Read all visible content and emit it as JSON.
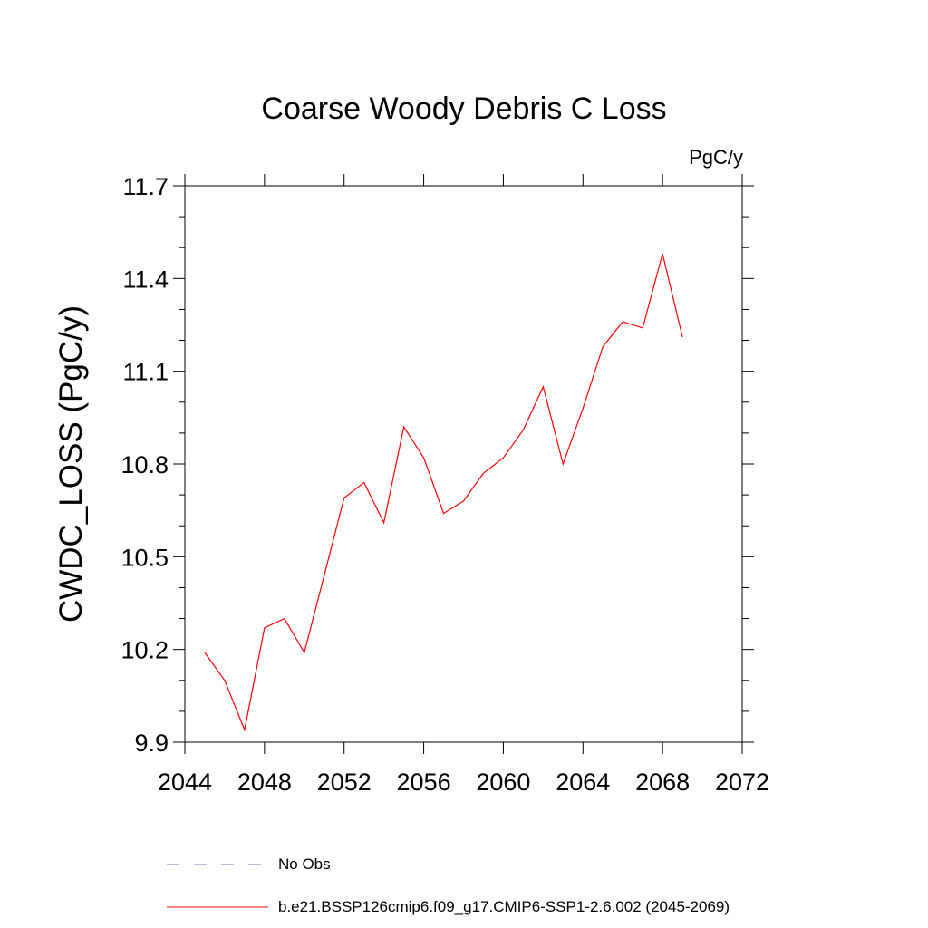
{
  "chart_data": {
    "type": "line",
    "title": "Coarse Woody Debris C Loss",
    "units": "PgC/y",
    "xlabel": "",
    "ylabel": "CWDC_LOSS  (PgC/y)",
    "xlim": [
      2044,
      2072
    ],
    "ylim": [
      9.9,
      11.7
    ],
    "x_ticks": [
      2044,
      2048,
      2052,
      2056,
      2060,
      2064,
      2068,
      2072
    ],
    "x_tick_labels": [
      "2044",
      "2048",
      "2052",
      "2056",
      "2060",
      "2064",
      "2068",
      "2072"
    ],
    "y_ticks": [
      9.9,
      10.2,
      10.5,
      10.8,
      11.1,
      11.4,
      11.7
    ],
    "y_tick_labels": [
      "9.9",
      "10.2",
      "10.5",
      "10.8",
      "11.1",
      "11.4",
      "11.7"
    ],
    "grid": false,
    "legend_position": "bottom",
    "series": [
      {
        "name": "b.e21.BSSP126cmip6.f09_g17.CMIP6-SSP1-2.6.002 (2045-2069)",
        "color": "#ff0000",
        "style": "solid",
        "x": [
          2045,
          2046,
          2047,
          2048,
          2049,
          2050,
          2051,
          2052,
          2053,
          2054,
          2055,
          2056,
          2057,
          2058,
          2059,
          2060,
          2061,
          2062,
          2063,
          2064,
          2065,
          2066,
          2067,
          2068,
          2069
        ],
        "y": [
          10.19,
          10.1,
          9.94,
          10.27,
          10.3,
          10.19,
          10.44,
          10.69,
          10.74,
          10.61,
          10.92,
          10.82,
          10.64,
          10.68,
          10.77,
          10.82,
          10.91,
          11.05,
          10.8,
          10.98,
          11.18,
          11.26,
          11.24,
          11.48,
          11.21
        ]
      }
    ],
    "legend": [
      {
        "label": "No Obs",
        "color": "#7b6fd0",
        "style": "dashed"
      },
      {
        "label": "b.e21.BSSP126cmip6.f09_g17.CMIP6-SSP1-2.6.002 (2045-2069)",
        "color": "#ff0000",
        "style": "solid"
      }
    ]
  }
}
